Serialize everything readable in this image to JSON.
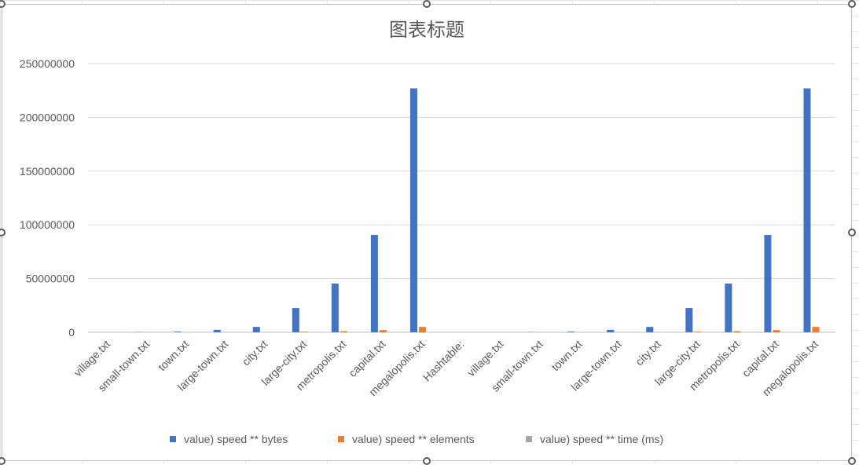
{
  "chart_data": {
    "type": "bar",
    "title": "图表标题",
    "xlabel": "",
    "ylabel": "",
    "ylim": [
      0,
      250000000
    ],
    "yticks": [
      "0",
      "50000000",
      "100000000",
      "150000000",
      "200000000",
      "250000000"
    ],
    "grid": true,
    "legend_position": "bottom",
    "categories": [
      "village.txt",
      "small-town.txt",
      "town.txt",
      "large-town.txt",
      "city.txt",
      "large-city.txt",
      "metropolis.txt",
      "capital.txt",
      "megalopolis.txt",
      "Hashtable:",
      "village.txt",
      "small-town.txt",
      "town.txt",
      "large-town.txt",
      "city.txt",
      "large-city.txt",
      "metropolis.txt",
      "capital.txt",
      "megalopolis.txt"
    ],
    "series": [
      {
        "name": "value) speed ** bytes",
        "color": "#4472C4",
        "values": [
          40000,
          200000,
          600000,
          2300000,
          5000000,
          22600000,
          45300000,
          90600000,
          227000000,
          0,
          40000,
          200000,
          600000,
          2300000,
          5000000,
          22600000,
          45300000,
          90600000,
          227000000
        ]
      },
      {
        "name": "value) speed ** elements",
        "color": "#ED7D31",
        "values": [
          1000,
          5000,
          15000,
          50000,
          100000,
          500000,
          1000000,
          2000000,
          5000000,
          0,
          1000,
          5000,
          15000,
          50000,
          100000,
          500000,
          1000000,
          2000000,
          5000000
        ]
      },
      {
        "name": "value) speed ** time (ms)",
        "color": "#A5A5A5",
        "values": [
          0,
          1,
          2,
          5,
          10,
          30,
          60,
          120,
          300,
          0,
          0,
          1,
          2,
          5,
          10,
          30,
          60,
          120,
          300
        ]
      }
    ]
  }
}
